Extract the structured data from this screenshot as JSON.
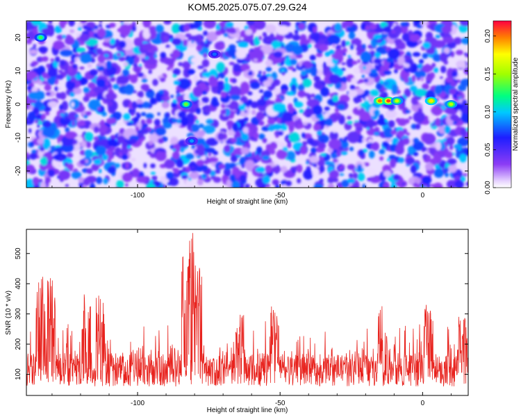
{
  "figure": {
    "title": "KOM5.2025.075.07.29.G24"
  },
  "chart_data": [
    {
      "type": "heatmap",
      "xlabel": "Height of straight line (km)",
      "ylabel": "Frequency (Hz)",
      "xlim": [
        -139,
        16
      ],
      "ylim": [
        -25,
        25
      ],
      "xticks": [
        "-100",
        "-50",
        "0"
      ],
      "yticks": [
        "20",
        "10",
        "0",
        "-10",
        "-20"
      ],
      "colorbar": {
        "label": "Normalized spectral amplitude",
        "range": [
          0.0,
          0.22
        ],
        "ticks": [
          "0.00",
          "0.05",
          "0.10",
          "0.15",
          "0.20"
        ]
      },
      "hotspots": [
        {
          "x": -134,
          "y": 20,
          "v": 0.13
        },
        {
          "x": -83,
          "y": 0,
          "v": 0.14
        },
        {
          "x": -81,
          "y": -11,
          "v": 0.09
        },
        {
          "x": -73,
          "y": 15,
          "v": 0.08
        },
        {
          "x": -15,
          "y": 1,
          "v": 0.2
        },
        {
          "x": -12,
          "y": 1,
          "v": 0.21
        },
        {
          "x": -9,
          "y": 1,
          "v": 0.16
        },
        {
          "x": 3,
          "y": 1,
          "v": 0.18
        },
        {
          "x": 10,
          "y": 0,
          "v": 0.16
        }
      ]
    },
    {
      "type": "line",
      "xlabel": "Height of straight line (km)",
      "ylabel": "SNR (10 * v/v)",
      "xlim": [
        -139,
        16
      ],
      "ylim": [
        30,
        580
      ],
      "xticks": [
        "-100",
        "-50",
        "0"
      ],
      "yticks": [
        "100",
        "200",
        "300",
        "400",
        "500"
      ],
      "color": "#e8231e",
      "baseline_band": [
        60,
        170
      ],
      "peaks": [
        {
          "x": -134,
          "y": 430
        },
        {
          "x": -130,
          "y": 420
        },
        {
          "x": -118,
          "y": 380
        },
        {
          "x": -113,
          "y": 370
        },
        {
          "x": -83,
          "y": 500
        },
        {
          "x": -81,
          "y": 570
        },
        {
          "x": -79,
          "y": 470
        },
        {
          "x": -64,
          "y": 300
        },
        {
          "x": -52,
          "y": 330
        },
        {
          "x": -14,
          "y": 345
        },
        {
          "x": 2,
          "y": 340
        },
        {
          "x": 14,
          "y": 300
        }
      ]
    }
  ]
}
